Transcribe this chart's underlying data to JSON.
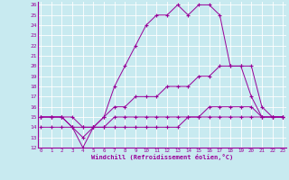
{
  "xlabel": "Windchill (Refroidissement éolien,°C)",
  "bg_color": "#c8eaf0",
  "line_color": "#990099",
  "grid_color": "#ffffff",
  "xmin": 0,
  "xmax": 23,
  "ymin": 12,
  "ymax": 26,
  "curve1_x": [
    0,
    1,
    2,
    3,
    4,
    5,
    6,
    7,
    8,
    9,
    10,
    11,
    12,
    13,
    14,
    15,
    16,
    17,
    18,
    19,
    20,
    21,
    22,
    23
  ],
  "curve1_y": [
    15,
    15,
    15,
    14,
    12,
    14,
    15,
    18,
    20,
    22,
    24,
    25,
    25,
    26,
    25,
    26,
    26,
    25,
    20,
    20,
    17,
    15,
    15,
    15
  ],
  "curve2_x": [
    0,
    1,
    2,
    3,
    4,
    5,
    6,
    7,
    8,
    9,
    10,
    11,
    12,
    13,
    14,
    15,
    16,
    17,
    18,
    19,
    20,
    21,
    22,
    23
  ],
  "curve2_y": [
    15,
    15,
    15,
    14,
    14,
    14,
    15,
    16,
    16,
    17,
    17,
    17,
    18,
    18,
    18,
    19,
    19,
    20,
    20,
    20,
    20,
    16,
    15,
    15
  ],
  "curve3_x": [
    0,
    1,
    2,
    3,
    4,
    5,
    6,
    7,
    8,
    9,
    10,
    11,
    12,
    13,
    14,
    15,
    16,
    17,
    18,
    19,
    20,
    21,
    22,
    23
  ],
  "curve3_y": [
    15,
    15,
    15,
    15,
    14,
    14,
    14,
    15,
    15,
    15,
    15,
    15,
    15,
    15,
    15,
    15,
    16,
    16,
    16,
    16,
    16,
    15,
    15,
    15
  ],
  "curve4_x": [
    0,
    1,
    2,
    3,
    4,
    5,
    6,
    7,
    8,
    9,
    10,
    11,
    12,
    13,
    14,
    15,
    16,
    17,
    18,
    19,
    20,
    21,
    22,
    23
  ],
  "curve4_y": [
    14,
    14,
    14,
    14,
    13,
    14,
    14,
    14,
    14,
    14,
    14,
    14,
    14,
    14,
    15,
    15,
    15,
    15,
    15,
    15,
    15,
    15,
    15,
    15
  ]
}
